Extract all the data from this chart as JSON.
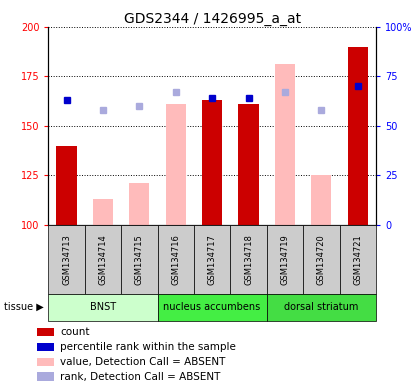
{
  "title": "GDS2344 / 1426995_a_at",
  "samples": [
    "GSM134713",
    "GSM134714",
    "GSM134715",
    "GSM134716",
    "GSM134717",
    "GSM134718",
    "GSM134719",
    "GSM134720",
    "GSM134721"
  ],
  "count_values": [
    140,
    null,
    null,
    null,
    163,
    161,
    null,
    null,
    190
  ],
  "absent_value_values": [
    null,
    113,
    121,
    161,
    null,
    null,
    181,
    125,
    null
  ],
  "percentile_rank_present": [
    163,
    null,
    null,
    null,
    164,
    164,
    null,
    null,
    170
  ],
  "percentile_rank_absent": [
    null,
    158,
    160,
    167,
    null,
    null,
    167,
    158,
    null
  ],
  "ylim_left": [
    100,
    200
  ],
  "ylim_right": [
    0,
    100
  ],
  "yticks_left": [
    100,
    125,
    150,
    175,
    200
  ],
  "yticks_right": [
    0,
    25,
    50,
    75,
    100
  ],
  "ytick_labels_right": [
    "0",
    "25",
    "50",
    "75",
    "100%"
  ],
  "tissue_groups": [
    {
      "label": "BNST",
      "start": 0,
      "end": 3,
      "color": "#ccffcc"
    },
    {
      "label": "nucleus accumbens",
      "start": 3,
      "end": 6,
      "color": "#44ee44"
    },
    {
      "label": "dorsal striatum",
      "start": 6,
      "end": 9,
      "color": "#44dd44"
    }
  ],
  "legend_items": [
    {
      "label": "count",
      "color": "#cc0000"
    },
    {
      "label": "percentile rank within the sample",
      "color": "#0000cc"
    },
    {
      "label": "value, Detection Call = ABSENT",
      "color": "#ffbbbb"
    },
    {
      "label": "rank, Detection Call = ABSENT",
      "color": "#aaaadd"
    }
  ],
  "bar_color_present": "#cc0000",
  "bar_color_absent": "#ffbbbb",
  "dot_color_present": "#0000cc",
  "dot_color_absent": "#aaaadd",
  "bar_width": 0.55,
  "sample_bg_color": "#cccccc",
  "title_fontsize": 10,
  "tick_fontsize": 7,
  "legend_fontsize": 7.5
}
